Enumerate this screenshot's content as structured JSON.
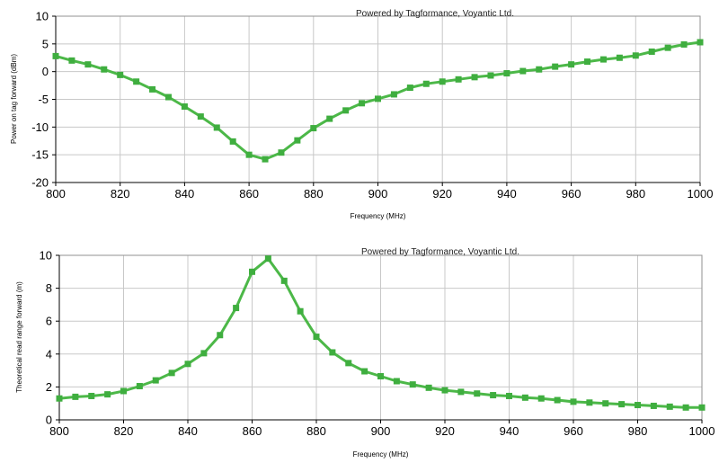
{
  "chart_data": [
    {
      "type": "line",
      "title": "",
      "credit": "Powered by Tagformance, Voyantic Ltd.",
      "xlabel": "Frequency (MHz)",
      "ylabel": "Power on tag forward (dBm)",
      "xlim": [
        800,
        1000
      ],
      "ylim": [
        -20,
        10
      ],
      "xticks": [
        800,
        820,
        840,
        860,
        880,
        900,
        920,
        940,
        960,
        980,
        1000
      ],
      "yticks": [
        -20,
        -15,
        -10,
        -5,
        0,
        5,
        10
      ],
      "grid": true,
      "color": "#4cb848",
      "x": [
        800,
        805,
        810,
        815,
        820,
        825,
        830,
        835,
        840,
        845,
        850,
        855,
        860,
        865,
        870,
        875,
        880,
        885,
        890,
        895,
        900,
        905,
        910,
        915,
        920,
        925,
        930,
        935,
        940,
        945,
        950,
        955,
        960,
        965,
        970,
        975,
        980,
        985,
        990,
        995,
        1000
      ],
      "y": [
        2.8,
        2.0,
        1.3,
        0.4,
        -0.6,
        -1.8,
        -3.2,
        -4.6,
        -6.3,
        -8.1,
        -10.1,
        -12.6,
        -15.0,
        -15.8,
        -14.6,
        -12.4,
        -10.2,
        -8.5,
        -7.0,
        -5.7,
        -4.9,
        -4.1,
        -2.9,
        -2.2,
        -1.8,
        -1.4,
        -1.0,
        -0.7,
        -0.3,
        0.1,
        0.4,
        0.9,
        1.3,
        1.8,
        2.2,
        2.5,
        2.9,
        3.6,
        4.3,
        4.9,
        5.3
      ]
    },
    {
      "type": "line",
      "title": "",
      "credit": "Powered by Tagformance, Voyantic Ltd.",
      "xlabel": "Frequency (MHz)",
      "ylabel": "Theoretical read range forward (m)",
      "xlim": [
        800,
        1000
      ],
      "ylim": [
        0,
        10
      ],
      "xticks": [
        800,
        820,
        840,
        860,
        880,
        900,
        920,
        940,
        960,
        980,
        1000
      ],
      "yticks": [
        0,
        2,
        4,
        6,
        8,
        10
      ],
      "grid": true,
      "color": "#4cb848",
      "x": [
        800,
        805,
        810,
        815,
        820,
        825,
        830,
        835,
        840,
        845,
        850,
        855,
        860,
        865,
        870,
        875,
        880,
        885,
        890,
        895,
        900,
        905,
        910,
        915,
        920,
        925,
        930,
        935,
        940,
        945,
        950,
        955,
        960,
        965,
        970,
        975,
        980,
        985,
        990,
        995,
        1000
      ],
      "y": [
        1.3,
        1.4,
        1.45,
        1.55,
        1.75,
        2.05,
        2.4,
        2.85,
        3.4,
        4.05,
        5.15,
        6.8,
        9.0,
        9.8,
        8.45,
        6.6,
        5.05,
        4.1,
        3.45,
        2.95,
        2.65,
        2.35,
        2.15,
        1.95,
        1.8,
        1.7,
        1.6,
        1.5,
        1.45,
        1.35,
        1.3,
        1.2,
        1.1,
        1.05,
        1.0,
        0.95,
        0.9,
        0.85,
        0.8,
        0.75,
        0.75
      ]
    }
  ]
}
